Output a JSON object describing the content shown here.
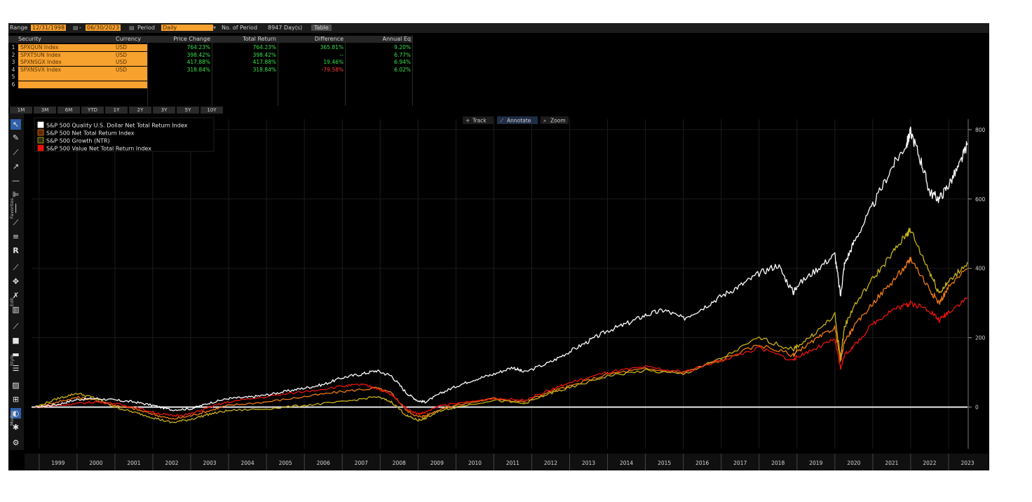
{
  "toolbar": {
    "range_label": "Range",
    "start_date": "12/31/1998",
    "end_date": "06/30/2023",
    "period_label": "Period",
    "period_value": "Daily",
    "num_periods_label": "No. of Period",
    "num_periods_value": "8947 Day(s)",
    "table_button": "Table"
  },
  "table": {
    "headers": [
      "Security",
      "Currency",
      "Price Change",
      "Total Return",
      "Difference",
      "Annual Eq"
    ],
    "rows": [
      {
        "n": "1",
        "security": "SPXQUN Index",
        "currency": "USD",
        "price_change": "764.23%",
        "total_return": "764.23%",
        "difference": "365.81%",
        "annual": "9.20%",
        "diff_color": "#38e04c"
      },
      {
        "n": "2",
        "security": "SPXT5UN Index",
        "currency": "USD",
        "price_change": "398.42%",
        "total_return": "398.42%",
        "difference": "--",
        "annual": "6.77%",
        "diff_color": "#38e04c"
      },
      {
        "n": "3",
        "security": "SPXNSGX Index",
        "currency": "USD",
        "price_change": "417.88%",
        "total_return": "417.88%",
        "difference": "19.46%",
        "annual": "6.94%",
        "diff_color": "#38e04c"
      },
      {
        "n": "4",
        "security": "SPXNSVX Index",
        "currency": "USD",
        "price_change": "318.84%",
        "total_return": "318.84%",
        "difference": "-79.58%",
        "annual": "6.02%",
        "diff_color": "#ff3b3b"
      },
      {
        "n": "5",
        "security": "",
        "currency": "",
        "price_change": "",
        "total_return": "",
        "difference": "",
        "annual": "",
        "diff_color": "#38e04c"
      },
      {
        "n": "6",
        "security": "",
        "currency": "",
        "price_change": "",
        "total_return": "",
        "difference": "",
        "annual": "",
        "diff_color": "#38e04c"
      }
    ]
  },
  "period_buttons": [
    "1M",
    "3M",
    "6M",
    "YTD",
    "1Y",
    "2Y",
    "3Y",
    "5Y",
    "10Y"
  ],
  "chart_controls": [
    "Track",
    "Annotate",
    "Zoom"
  ],
  "tool_sections": [
    "Favorites",
    "Edit",
    "Style",
    "Modes"
  ],
  "icons": {
    "cursor": "cursor-icon",
    "pencil": "pencil-icon",
    "line": "line-icon",
    "settings": "gear-icon"
  },
  "chart_data": {
    "type": "line",
    "title": "",
    "xlabel": "",
    "ylabel": "",
    "xlim": [
      1998.8,
      2023.5
    ],
    "ylim": [
      -120,
      830
    ],
    "yticks": [
      0,
      200,
      400,
      600,
      800
    ],
    "xticks": [
      "1999",
      "2000",
      "2001",
      "2002",
      "2003",
      "2004",
      "2005",
      "2006",
      "2007",
      "2008",
      "2009",
      "2010",
      "2011",
      "2012",
      "2013",
      "2014",
      "2015",
      "2016",
      "2017",
      "2018",
      "2019",
      "2020",
      "2021",
      "2022",
      "2023"
    ],
    "legend_position": "top-left",
    "grid": true,
    "series": [
      {
        "name": "S&P 500 Quality U.S. Dollar Net Total Return Index",
        "color": "#ffffff",
        "x": [
          1998.9,
          1999.5,
          2000.0,
          2000.5,
          2001.0,
          2001.5,
          2002.0,
          2002.5,
          2003.0,
          2003.5,
          2004.0,
          2004.5,
          2005.0,
          2005.5,
          2006.0,
          2006.5,
          2007.0,
          2007.5,
          2007.9,
          2008.3,
          2008.7,
          2009.0,
          2009.2,
          2009.6,
          2010.0,
          2010.5,
          2011.0,
          2011.5,
          2011.8,
          2012.5,
          2013.0,
          2013.5,
          2014.0,
          2014.5,
          2015.0,
          2015.5,
          2016.0,
          2016.5,
          2017.0,
          2017.5,
          2018.0,
          2018.5,
          2018.9,
          2019.0,
          2019.5,
          2020.0,
          2020.15,
          2020.25,
          2020.5,
          2021.0,
          2021.5,
          2021.9,
          2022.0,
          2022.3,
          2022.5,
          2022.75,
          2023.0,
          2023.3,
          2023.5
        ],
        "y": [
          0,
          8,
          22,
          25,
          20,
          15,
          5,
          -8,
          -5,
          12,
          25,
          28,
          35,
          45,
          55,
          65,
          85,
          95,
          105,
          90,
          40,
          18,
          15,
          40,
          60,
          80,
          95,
          115,
          100,
          130,
          160,
          190,
          220,
          240,
          265,
          280,
          255,
          285,
          320,
          350,
          385,
          410,
          330,
          350,
          395,
          440,
          320,
          410,
          475,
          580,
          690,
          760,
          795,
          700,
          620,
          600,
          640,
          700,
          760
        ],
        "values": [
          0,
          8,
          22,
          25,
          20,
          15,
          5,
          -8,
          -5,
          12,
          25,
          28,
          35,
          45,
          55,
          65,
          85,
          95,
          105,
          90,
          40,
          18,
          15,
          40,
          60,
          80,
          95,
          115,
          100,
          130,
          160,
          190,
          220,
          240,
          265,
          280,
          255,
          285,
          320,
          350,
          385,
          410,
          330,
          350,
          395,
          440,
          320,
          410,
          475,
          580,
          690,
          760,
          795,
          700,
          620,
          600,
          640,
          700,
          760
        ]
      },
      {
        "name": "S&P 500 Net Total Return Index",
        "color": "#f07a12",
        "x": [
          1998.9,
          1999.5,
          2000.0,
          2000.5,
          2001.0,
          2001.5,
          2002.0,
          2002.5,
          2003.0,
          2003.5,
          2004.0,
          2005.0,
          2006.0,
          2007.0,
          2007.9,
          2008.3,
          2008.7,
          2009.0,
          2009.2,
          2009.6,
          2010.0,
          2011.0,
          2011.8,
          2012.5,
          2013.0,
          2014.0,
          2015.0,
          2016.0,
          2017.0,
          2018.0,
          2018.9,
          2019.0,
          2019.5,
          2020.0,
          2020.15,
          2020.25,
          2020.5,
          2021.0,
          2021.5,
          2021.9,
          2022.0,
          2022.5,
          2022.75,
          2023.0,
          2023.5
        ],
        "y": [
          0,
          15,
          28,
          20,
          5,
          -5,
          -20,
          -35,
          -25,
          -10,
          5,
          15,
          30,
          45,
          55,
          40,
          -10,
          -28,
          -25,
          -5,
          5,
          25,
          15,
          45,
          60,
          95,
          110,
          100,
          135,
          180,
          150,
          160,
          195,
          230,
          130,
          190,
          230,
          300,
          360,
          410,
          430,
          340,
          300,
          345,
          400
        ],
        "values": [
          0,
          15,
          28,
          20,
          5,
          -5,
          -20,
          -35,
          -25,
          -10,
          5,
          15,
          30,
          45,
          55,
          40,
          -10,
          -28,
          -25,
          -5,
          5,
          25,
          15,
          45,
          60,
          95,
          110,
          100,
          135,
          180,
          150,
          160,
          195,
          230,
          130,
          190,
          230,
          300,
          360,
          410,
          430,
          340,
          300,
          345,
          400
        ]
      },
      {
        "name": "S&P 500 Growth (NTR)",
        "color": "#c8b21a",
        "x": [
          1998.9,
          1999.5,
          2000.0,
          2000.5,
          2001.0,
          2001.5,
          2002.0,
          2002.5,
          2003.0,
          2003.5,
          2004.0,
          2005.0,
          2006.0,
          2007.0,
          2007.9,
          2008.3,
          2008.7,
          2009.0,
          2009.2,
          2009.6,
          2010.0,
          2011.0,
          2011.8,
          2012.5,
          2013.0,
          2014.0,
          2015.0,
          2016.0,
          2017.0,
          2018.0,
          2018.9,
          2019.0,
          2019.5,
          2020.0,
          2020.15,
          2020.25,
          2020.5,
          2021.0,
          2021.5,
          2021.9,
          2022.0,
          2022.5,
          2022.75,
          2023.0,
          2023.5
        ],
        "y": [
          0,
          25,
          40,
          25,
          0,
          -15,
          -30,
          -45,
          -35,
          -20,
          -10,
          -5,
          5,
          15,
          30,
          15,
          -25,
          -38,
          -32,
          -10,
          0,
          20,
          10,
          40,
          55,
          90,
          105,
          95,
          140,
          200,
          165,
          175,
          215,
          265,
          140,
          230,
          290,
          370,
          440,
          500,
          510,
          390,
          330,
          360,
          418
        ],
        "values": [
          0,
          25,
          40,
          25,
          0,
          -15,
          -30,
          -45,
          -35,
          -20,
          -10,
          -5,
          5,
          15,
          30,
          15,
          -25,
          -38,
          -32,
          -10,
          0,
          20,
          10,
          40,
          55,
          90,
          105,
          95,
          140,
          200,
          165,
          175,
          215,
          265,
          140,
          230,
          290,
          370,
          440,
          500,
          510,
          390,
          330,
          360,
          418
        ]
      },
      {
        "name": "S&P 500 Value Net Total Return Index",
        "color": "#e8140c",
        "x": [
          1998.9,
          1999.5,
          2000.0,
          2000.5,
          2001.0,
          2001.5,
          2002.0,
          2002.5,
          2003.0,
          2003.5,
          2004.0,
          2005.0,
          2006.0,
          2007.0,
          2007.5,
          2007.9,
          2008.3,
          2008.7,
          2009.0,
          2009.2,
          2009.6,
          2010.0,
          2011.0,
          2011.8,
          2012.5,
          2013.0,
          2014.0,
          2015.0,
          2016.0,
          2017.0,
          2018.0,
          2018.9,
          2019.0,
          2019.5,
          2020.0,
          2020.15,
          2020.25,
          2020.5,
          2021.0,
          2021.5,
          2021.9,
          2022.0,
          2022.5,
          2022.75,
          2023.0,
          2023.5
        ],
        "y": [
          0,
          5,
          10,
          15,
          10,
          0,
          -15,
          -25,
          -20,
          0,
          15,
          30,
          45,
          60,
          65,
          55,
          35,
          -5,
          -20,
          -15,
          5,
          10,
          25,
          20,
          50,
          70,
          100,
          115,
          100,
          135,
          170,
          135,
          145,
          170,
          195,
          110,
          150,
          175,
          240,
          280,
          295,
          300,
          280,
          250,
          275,
          315
        ],
        "values": [
          0,
          5,
          10,
          15,
          10,
          0,
          -15,
          -25,
          -20,
          0,
          15,
          30,
          45,
          60,
          65,
          55,
          35,
          -5,
          -20,
          -15,
          5,
          10,
          25,
          20,
          50,
          70,
          100,
          115,
          100,
          135,
          170,
          135,
          145,
          170,
          195,
          110,
          150,
          175,
          240,
          280,
          295,
          300,
          280,
          250,
          275,
          315
        ]
      }
    ]
  }
}
